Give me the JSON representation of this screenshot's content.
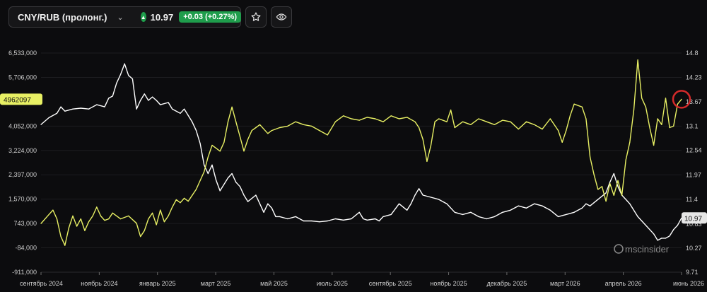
{
  "toolbar": {
    "instrument": "CNY/RUB (пролонг.)",
    "price": "10.97",
    "change": "+0.03 (+0.27%)",
    "icons": {
      "dropdown": "chevron-down-icon",
      "up": "triangle-up-icon",
      "star": "star-icon",
      "eye": "eye-icon"
    }
  },
  "watermark": "mscinsider",
  "colors": {
    "price_series": "#ffffff",
    "oi_series": "#e8f064",
    "badge_green": "#1f9d4c",
    "marker": "#d42a2a"
  },
  "chart_data": {
    "type": "line",
    "x_ticks": [
      "сентябрь 2024",
      "ноябрь 2024",
      "январь 2025",
      "март 2025",
      "май 2025",
      "июль 2025",
      "сентябрь 2025",
      "ноябрь 2025",
      "декабрь 2025",
      "март 2026",
      "апрель 2026",
      "июнь 2026"
    ],
    "left_axis": {
      "ticks": [
        "6,533,000",
        "5,706,000",
        "4,052,000",
        "3,224,000",
        "2,397,000",
        "1,570,000",
        "743,000",
        "-84,000",
        "-911,000"
      ],
      "range": [
        -911000,
        6533000
      ],
      "last_value_label": "4962097"
    },
    "right_axis": {
      "ticks": [
        "14.8",
        "14.23",
        "13.67",
        "13.1",
        "12.54",
        "11.97",
        "11.4",
        "10.83",
        "10.27",
        "9.71"
      ],
      "range": [
        9.71,
        14.8
      ],
      "last_value_label": "10.97"
    },
    "series": [
      {
        "axis": "right",
        "color": "#ffffff",
        "points": [
          [
            0,
            13.14
          ],
          [
            2,
            13.3
          ],
          [
            4,
            13.4
          ],
          [
            5,
            13.55
          ],
          [
            6,
            13.45
          ],
          [
            8,
            13.5
          ],
          [
            10,
            13.52
          ],
          [
            12,
            13.5
          ],
          [
            14,
            13.6
          ],
          [
            16,
            13.55
          ],
          [
            17,
            13.75
          ],
          [
            18,
            13.8
          ],
          [
            19,
            14.1
          ],
          [
            20,
            14.3
          ],
          [
            21,
            14.55
          ],
          [
            22,
            14.28
          ],
          [
            23,
            14.2
          ],
          [
            24,
            13.5
          ],
          [
            25,
            13.7
          ],
          [
            26,
            13.85
          ],
          [
            27,
            13.7
          ],
          [
            28,
            13.78
          ],
          [
            29,
            13.7
          ],
          [
            30,
            13.6
          ],
          [
            32,
            13.65
          ],
          [
            33,
            13.5
          ],
          [
            35,
            13.4
          ],
          [
            36,
            13.5
          ],
          [
            37,
            13.35
          ],
          [
            38,
            13.2
          ],
          [
            39,
            13.0
          ],
          [
            40,
            12.7
          ],
          [
            41,
            12.2
          ],
          [
            42,
            12.0
          ],
          [
            43,
            12.2
          ],
          [
            44,
            11.85
          ],
          [
            45,
            11.6
          ],
          [
            47,
            11.9
          ],
          [
            48,
            12.0
          ],
          [
            49,
            11.8
          ],
          [
            50,
            11.7
          ],
          [
            51,
            11.5
          ],
          [
            52,
            11.35
          ],
          [
            54,
            11.5
          ],
          [
            55,
            11.3
          ],
          [
            56,
            11.1
          ],
          [
            57,
            11.3
          ],
          [
            58,
            11.2
          ],
          [
            59,
            11.0
          ],
          [
            60,
            11.0
          ],
          [
            62,
            10.95
          ],
          [
            64,
            11.0
          ],
          [
            66,
            10.9
          ],
          [
            68,
            10.9
          ],
          [
            70,
            10.88
          ],
          [
            72,
            10.9
          ],
          [
            74,
            10.95
          ],
          [
            76,
            10.92
          ],
          [
            78,
            10.95
          ],
          [
            80,
            11.1
          ],
          [
            81,
            10.95
          ],
          [
            82,
            10.92
          ],
          [
            84,
            10.95
          ],
          [
            85,
            10.9
          ],
          [
            86,
            11.0
          ],
          [
            88,
            11.05
          ],
          [
            90,
            11.3
          ],
          [
            92,
            11.15
          ],
          [
            93,
            11.3
          ],
          [
            94,
            11.5
          ],
          [
            95,
            11.65
          ],
          [
            96,
            11.5
          ],
          [
            98,
            11.45
          ],
          [
            100,
            11.4
          ],
          [
            102,
            11.3
          ],
          [
            104,
            11.1
          ],
          [
            106,
            11.05
          ],
          [
            108,
            11.1
          ],
          [
            110,
            11.0
          ],
          [
            112,
            10.95
          ],
          [
            114,
            11.0
          ],
          [
            116,
            11.1
          ],
          [
            118,
            11.15
          ],
          [
            120,
            11.25
          ],
          [
            122,
            11.2
          ],
          [
            124,
            11.3
          ],
          [
            126,
            11.25
          ],
          [
            128,
            11.15
          ],
          [
            130,
            11.0
          ],
          [
            132,
            11.05
          ],
          [
            134,
            11.1
          ],
          [
            136,
            11.2
          ],
          [
            137,
            11.3
          ],
          [
            138,
            11.25
          ],
          [
            140,
            11.4
          ],
          [
            142,
            11.55
          ],
          [
            143,
            11.8
          ],
          [
            144,
            12.0
          ],
          [
            145,
            11.7
          ],
          [
            146,
            11.5
          ],
          [
            148,
            11.3
          ],
          [
            150,
            11.0
          ],
          [
            152,
            10.8
          ],
          [
            154,
            10.6
          ],
          [
            155,
            10.45
          ],
          [
            156,
            10.5
          ],
          [
            157,
            10.5
          ],
          [
            158,
            10.55
          ],
          [
            159,
            10.7
          ],
          [
            160,
            10.8
          ],
          [
            161,
            10.97
          ]
        ]
      },
      {
        "axis": "left",
        "color": "#e8f064",
        "points": [
          [
            0,
            743000
          ],
          [
            2,
            1050000
          ],
          [
            3,
            1200000
          ],
          [
            4,
            900000
          ],
          [
            5,
            300000
          ],
          [
            6,
            0
          ],
          [
            7,
            600000
          ],
          [
            8,
            1000000
          ],
          [
            9,
            650000
          ],
          [
            10,
            900000
          ],
          [
            11,
            500000
          ],
          [
            12,
            800000
          ],
          [
            13,
            1000000
          ],
          [
            14,
            1300000
          ],
          [
            15,
            1000000
          ],
          [
            16,
            850000
          ],
          [
            17,
            900000
          ],
          [
            18,
            1100000
          ],
          [
            20,
            900000
          ],
          [
            22,
            1000000
          ],
          [
            24,
            750000
          ],
          [
            25,
            300000
          ],
          [
            26,
            500000
          ],
          [
            27,
            900000
          ],
          [
            28,
            1100000
          ],
          [
            29,
            700000
          ],
          [
            30,
            1200000
          ],
          [
            31,
            800000
          ],
          [
            32,
            1000000
          ],
          [
            33,
            1300000
          ],
          [
            34,
            1550000
          ],
          [
            35,
            1450000
          ],
          [
            36,
            1600000
          ],
          [
            37,
            1500000
          ],
          [
            38,
            1700000
          ],
          [
            39,
            1900000
          ],
          [
            40,
            2200000
          ],
          [
            41,
            2500000
          ],
          [
            42,
            3000000
          ],
          [
            43,
            3400000
          ],
          [
            44,
            3300000
          ],
          [
            45,
            3200000
          ],
          [
            46,
            3500000
          ],
          [
            47,
            4200000
          ],
          [
            48,
            4700000
          ],
          [
            49,
            4200000
          ],
          [
            50,
            3700000
          ],
          [
            51,
            3200000
          ],
          [
            52,
            3600000
          ],
          [
            53,
            3900000
          ],
          [
            54,
            4000000
          ],
          [
            55,
            4100000
          ],
          [
            57,
            3800000
          ],
          [
            58,
            3900000
          ],
          [
            60,
            4000000
          ],
          [
            62,
            4050000
          ],
          [
            64,
            4200000
          ],
          [
            66,
            4100000
          ],
          [
            68,
            4050000
          ],
          [
            70,
            3900000
          ],
          [
            72,
            3750000
          ],
          [
            74,
            4200000
          ],
          [
            76,
            4400000
          ],
          [
            78,
            4300000
          ],
          [
            80,
            4250000
          ],
          [
            82,
            4350000
          ],
          [
            84,
            4300000
          ],
          [
            86,
            4200000
          ],
          [
            88,
            4400000
          ],
          [
            90,
            4300000
          ],
          [
            92,
            4350000
          ],
          [
            94,
            4200000
          ],
          [
            95,
            4000000
          ],
          [
            96,
            3600000
          ],
          [
            97,
            2850000
          ],
          [
            98,
            3400000
          ],
          [
            99,
            4200000
          ],
          [
            100,
            4300000
          ],
          [
            102,
            4200000
          ],
          [
            103,
            4600000
          ],
          [
            104,
            4000000
          ],
          [
            106,
            4200000
          ],
          [
            108,
            4100000
          ],
          [
            110,
            4300000
          ],
          [
            112,
            4200000
          ],
          [
            114,
            4100000
          ],
          [
            116,
            4250000
          ],
          [
            118,
            4200000
          ],
          [
            120,
            3950000
          ],
          [
            122,
            4200000
          ],
          [
            124,
            4100000
          ],
          [
            126,
            3950000
          ],
          [
            128,
            4300000
          ],
          [
            130,
            3900000
          ],
          [
            131,
            3500000
          ],
          [
            132,
            3900000
          ],
          [
            133,
            4400000
          ],
          [
            134,
            4800000
          ],
          [
            136,
            4700000
          ],
          [
            137,
            4300000
          ],
          [
            138,
            3000000
          ],
          [
            139,
            2400000
          ],
          [
            140,
            1900000
          ],
          [
            141,
            2000000
          ],
          [
            142,
            1500000
          ],
          [
            143,
            2100000
          ],
          [
            144,
            1700000
          ],
          [
            145,
            2200000
          ],
          [
            146,
            1700000
          ],
          [
            147,
            2900000
          ],
          [
            148,
            3500000
          ],
          [
            149,
            4600000
          ],
          [
            150,
            6300000
          ],
          [
            151,
            5000000
          ],
          [
            152,
            4700000
          ],
          [
            153,
            4000000
          ],
          [
            154,
            3400000
          ],
          [
            155,
            4300000
          ],
          [
            156,
            4100000
          ],
          [
            157,
            5000000
          ],
          [
            158,
            4000000
          ],
          [
            159,
            4050000
          ],
          [
            160,
            4800000
          ],
          [
            161,
            4962097
          ]
        ]
      }
    ]
  }
}
